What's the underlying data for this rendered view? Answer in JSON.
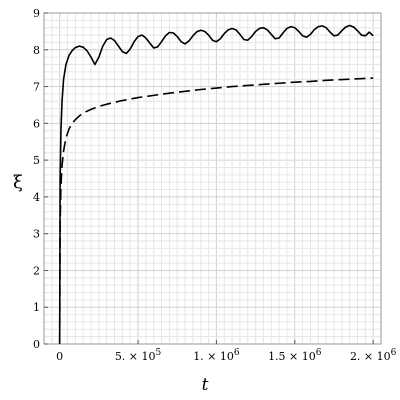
{
  "chart_data": {
    "type": "line",
    "xlabel": "t",
    "ylabel": "ξ",
    "xlim": [
      -100000,
      2050000
    ],
    "ylim": [
      0,
      9
    ],
    "grid": true,
    "x_ticks": [
      {
        "value": 0,
        "mantissa": "0",
        "exp": ""
      },
      {
        "value": 500000,
        "mantissa": "5. × 10",
        "exp": "5"
      },
      {
        "value": 1000000,
        "mantissa": "1. × 10",
        "exp": "6"
      },
      {
        "value": 1500000,
        "mantissa": "1.5 × 10",
        "exp": "6"
      },
      {
        "value": 2000000,
        "mantissa": "2. × 10",
        "exp": "6"
      }
    ],
    "y_ticks": [
      "0",
      "1",
      "2",
      "3",
      "4",
      "5",
      "6",
      "7",
      "8",
      "9"
    ],
    "series": [
      {
        "style": "solid",
        "color": "#000000",
        "x": [
          0,
          3000,
          8000,
          15000,
          25000,
          40000,
          60000,
          80000,
          100000,
          125000,
          150000,
          175000,
          200000,
          225000,
          250000,
          275000,
          300000,
          325000,
          350000,
          375000,
          400000,
          425000,
          450000,
          475000,
          500000,
          525000,
          550000,
          575000,
          600000,
          625000,
          650000,
          675000,
          700000,
          725000,
          750000,
          775000,
          800000,
          825000,
          850000,
          875000,
          900000,
          925000,
          950000,
          975000,
          1000000,
          1025000,
          1050000,
          1075000,
          1100000,
          1125000,
          1150000,
          1175000,
          1200000,
          1225000,
          1250000,
          1275000,
          1300000,
          1325000,
          1350000,
          1375000,
          1400000,
          1425000,
          1450000,
          1475000,
          1500000,
          1525000,
          1550000,
          1575000,
          1600000,
          1625000,
          1650000,
          1675000,
          1700000,
          1725000,
          1750000,
          1775000,
          1800000,
          1825000,
          1850000,
          1875000,
          1900000,
          1925000,
          1950000,
          1975000,
          2000000
        ],
        "y": [
          0,
          4.5,
          5.8,
          6.6,
          7.2,
          7.6,
          7.85,
          7.98,
          8.06,
          8.1,
          8.07,
          7.97,
          7.8,
          7.6,
          7.8,
          8.1,
          8.28,
          8.32,
          8.25,
          8.1,
          7.95,
          7.9,
          8.02,
          8.22,
          8.36,
          8.4,
          8.32,
          8.18,
          8.05,
          8.08,
          8.22,
          8.38,
          8.47,
          8.46,
          8.36,
          8.22,
          8.16,
          8.24,
          8.38,
          8.49,
          8.53,
          8.5,
          8.4,
          8.26,
          8.22,
          8.3,
          8.44,
          8.54,
          8.58,
          8.54,
          8.42,
          8.28,
          8.26,
          8.36,
          8.5,
          8.58,
          8.6,
          8.54,
          8.42,
          8.3,
          8.32,
          8.46,
          8.58,
          8.63,
          8.6,
          8.5,
          8.38,
          8.34,
          8.42,
          8.55,
          8.63,
          8.65,
          8.6,
          8.48,
          8.38,
          8.4,
          8.52,
          8.62,
          8.66,
          8.62,
          8.52,
          8.4,
          8.38,
          8.48,
          8.38
        ]
      },
      {
        "style": "dashed",
        "color": "#000000",
        "x": [
          0,
          3000,
          8000,
          15000,
          25000,
          40000,
          60000,
          80000,
          100000,
          125000,
          150000,
          200000,
          250000,
          300000,
          400000,
          500000,
          600000,
          700000,
          800000,
          900000,
          1000000,
          1100000,
          1200000,
          1300000,
          1400000,
          1500000,
          1600000,
          1700000,
          1800000,
          1900000,
          2000000
        ],
        "y": [
          0,
          3.3,
          4.3,
          4.85,
          5.25,
          5.6,
          5.85,
          6.0,
          6.1,
          6.2,
          6.28,
          6.38,
          6.46,
          6.52,
          6.62,
          6.7,
          6.76,
          6.82,
          6.87,
          6.92,
          6.96,
          7.0,
          7.03,
          7.06,
          7.09,
          7.12,
          7.14,
          7.17,
          7.19,
          7.21,
          7.23
        ]
      }
    ]
  }
}
